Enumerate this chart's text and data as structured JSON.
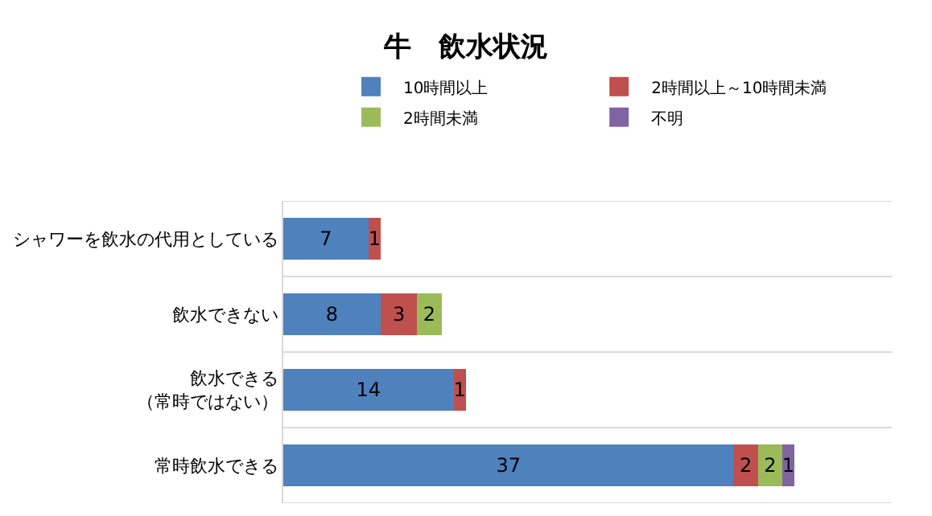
{
  "chart_data": {
    "type": "bar",
    "orientation": "horizontal",
    "stacked": true,
    "title": "牛　飲水状況",
    "categories": [
      "シャワーを飲水の代用としている",
      "飲水できない",
      "飲水できる（常時ではない）",
      "常時飲水できる"
    ],
    "series": [
      {
        "name": "10時間以上",
        "color": "#4f81bd",
        "values": [
          7,
          8,
          14,
          37
        ]
      },
      {
        "name": "2時間以上～10時間未満",
        "color": "#c0504d",
        "values": [
          1,
          3,
          1,
          2
        ]
      },
      {
        "name": "2時間未満",
        "color": "#9bbb59",
        "values": [
          null,
          2,
          null,
          2
        ]
      },
      {
        "name": "不明",
        "color": "#8064a2",
        "values": [
          null,
          null,
          null,
          1
        ]
      }
    ],
    "xlim": [
      0,
      50
    ],
    "data_labels": true,
    "grid": "y",
    "legend": "top",
    "tick_labels": "y"
  }
}
